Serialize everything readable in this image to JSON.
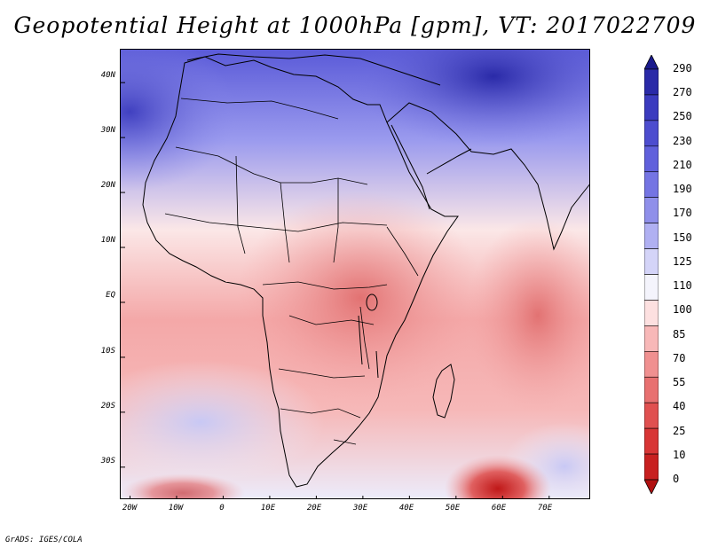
{
  "title": "Geopotential Height at 1000hPa [gpm], VT: 2017022709",
  "credit": "GrADS: IGES/COLA",
  "map": {
    "variable": "Geopotential Height at 1000hPa",
    "units": "gpm",
    "valid_time": "2017022709",
    "lat_range": [
      -36,
      46
    ],
    "lon_range": [
      -22,
      79
    ],
    "y_ticks": [
      "40N",
      "30N",
      "20N",
      "10N",
      "EQ",
      "10S",
      "20S",
      "30S"
    ],
    "y_tick_values": [
      40,
      30,
      20,
      10,
      0,
      -10,
      -20,
      -30
    ],
    "x_ticks": [
      "20W",
      "10W",
      "0",
      "10E",
      "20E",
      "30E",
      "40E",
      "50E",
      "60E",
      "70E"
    ],
    "x_tick_values": [
      -20,
      -10,
      0,
      10,
      20,
      30,
      40,
      50,
      60,
      70
    ]
  },
  "colorbar": {
    "levels": [
      "290",
      "270",
      "250",
      "230",
      "210",
      "190",
      "170",
      "150",
      "125",
      "110",
      "100",
      "85",
      "70",
      "55",
      "40",
      "25",
      "10",
      "0"
    ],
    "colors": [
      "#1a1a8c",
      "#2a2aa8",
      "#3b3bbf",
      "#4d4dcf",
      "#6060dc",
      "#7474e3",
      "#8f8fea",
      "#b0b0f2",
      "#d4d4f8",
      "#f4f4fc",
      "#fde0e0",
      "#f8b8b8",
      "#f09090",
      "#e87070",
      "#e05050",
      "#d83535",
      "#c82020",
      "#b01010"
    ]
  }
}
